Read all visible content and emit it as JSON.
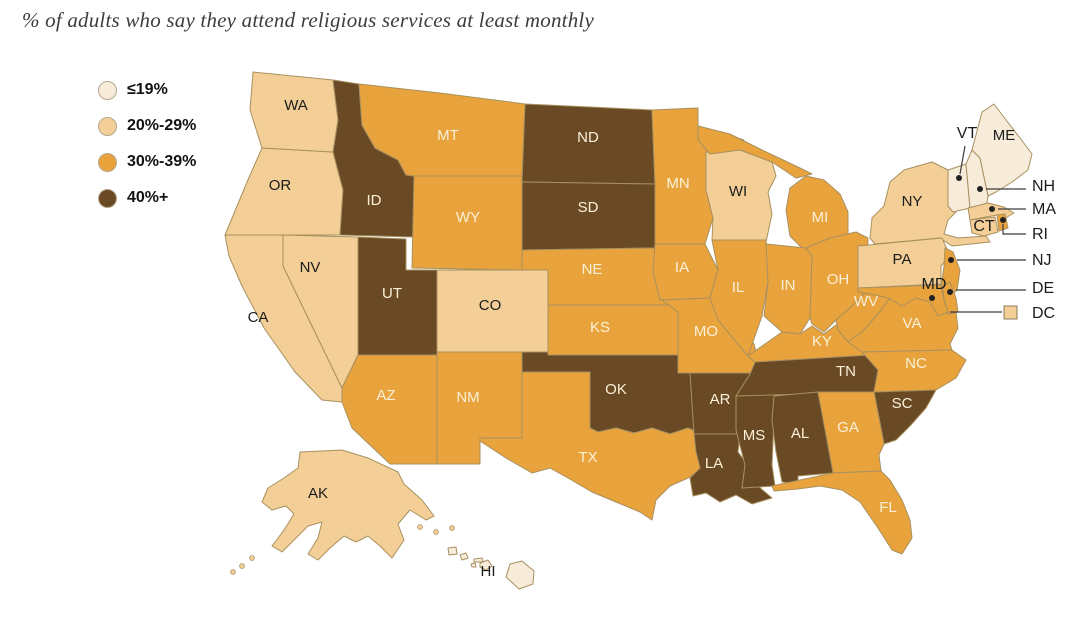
{
  "title": "% of adults who say they attend religious services at least monthly",
  "legend": {
    "items": [
      {
        "label": "≤19%",
        "color": "#F7EBD9"
      },
      {
        "label": "20%-29%",
        "color": "#F3CF97"
      },
      {
        "label": "30%-39%",
        "color": "#E9A33C"
      },
      {
        "label": "40%+",
        "color": "#6A4A24"
      }
    ]
  },
  "map": {
    "border_color": "#A8905F",
    "label_dark": "#1b1b1b",
    "label_light": "#FAF0D8",
    "callout_line_color": "#3c3c3c",
    "callouts": [
      {
        "abbr": "VT",
        "label": "VT"
      },
      {
        "abbr": "ME",
        "label": "ME"
      },
      {
        "abbr": "NH",
        "label": "NH"
      },
      {
        "abbr": "MA",
        "label": "MA"
      },
      {
        "abbr": "RI",
        "label": "RI"
      },
      {
        "abbr": "NJ",
        "label": "NJ"
      },
      {
        "abbr": "DE",
        "label": "DE"
      },
      {
        "abbr": "DC",
        "label": "DC"
      },
      {
        "abbr": "MD",
        "label": "MD"
      },
      {
        "abbr": "CT",
        "label": "CT"
      }
    ]
  },
  "chart_data": {
    "type": "choropleth",
    "title": "% of adults who say they attend religious services at least monthly",
    "legend_bins": [
      "≤19%",
      "20%-29%",
      "30%-39%",
      "40%+"
    ],
    "state_bins": {
      "WA": "20%-29%",
      "OR": "20%-29%",
      "CA": "20%-29%",
      "NV": "20%-29%",
      "ID": "40%+",
      "MT": "30%-39%",
      "WY": "30%-39%",
      "UT": "40%+",
      "CO": "20%-29%",
      "AZ": "30%-39%",
      "NM": "30%-39%",
      "ND": "40%+",
      "SD": "40%+",
      "NE": "30%-39%",
      "KS": "30%-39%",
      "OK": "40%+",
      "TX": "30%-39%",
      "MN": "30%-39%",
      "IA": "30%-39%",
      "MO": "30%-39%",
      "AR": "40%+",
      "LA": "40%+",
      "WI": "20%-29%",
      "IL": "30%-39%",
      "MS": "40%+",
      "MI": "30%-39%",
      "IN": "30%-39%",
      "OH": "30%-39%",
      "KY": "30%-39%",
      "TN": "40%+",
      "WV": "30%-39%",
      "VA": "30%-39%",
      "NC": "30%-39%",
      "SC": "40%+",
      "GA": "30%-39%",
      "AL": "40%+",
      "FL": "30%-39%",
      "NY": "20%-29%",
      "PA": "20%-29%",
      "NJ": "30%-39%",
      "DE": "30%-39%",
      "MD": "30%-39%",
      "DC": "20%-29%",
      "VT": "≤19%",
      "NH": "≤19%",
      "ME": "≤19%",
      "MA": "20%-29%",
      "CT": "20%-29%",
      "RI": "30%-39%",
      "AK": "20%-29%",
      "HI": "≤19%"
    }
  }
}
